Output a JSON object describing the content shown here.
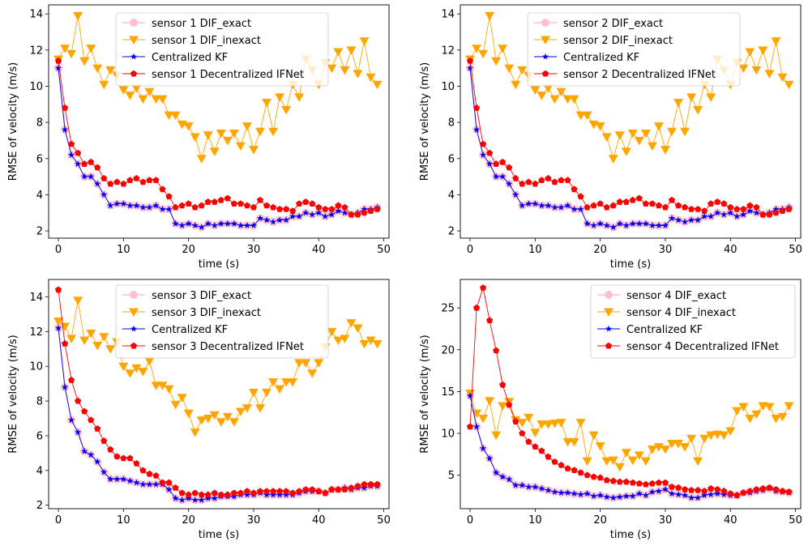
{
  "colors": {
    "exact": "#ffc0cb",
    "inexact": "#ffa500",
    "kf": "#0000ff",
    "ifnet": "#ff0000"
  },
  "chart_data": [
    {
      "type": "line",
      "title": "",
      "xlabel": "time (s)",
      "ylabel": "RMSE of velocity (m/s)",
      "xlim": [
        -1.5,
        50.8
      ],
      "ylim": [
        1.6,
        14.5
      ],
      "xticks": [
        0,
        10,
        20,
        30,
        40,
        50
      ],
      "yticks": [
        2,
        4,
        6,
        8,
        10,
        12,
        14
      ],
      "legend_position": "top-center",
      "series": [
        {
          "key": "exact",
          "name": "sensor 1 DIF_exact",
          "marker": "circle",
          "values": [
            11.0,
            7.6,
            6.2,
            5.7,
            5.0,
            5.0,
            4.6,
            4.0,
            3.4,
            3.5,
            3.5,
            3.4,
            3.4,
            3.3,
            3.3,
            3.4,
            3.2,
            3.2,
            2.4,
            2.3,
            2.4,
            2.3,
            2.2,
            2.4,
            2.3,
            2.4,
            2.4,
            2.4,
            2.3,
            2.3,
            2.3,
            2.7,
            2.6,
            2.5,
            2.6,
            2.6,
            2.8,
            2.8,
            3.0,
            2.9,
            3.0,
            2.8,
            2.9,
            3.1,
            3.0,
            2.9,
            3.0,
            3.2,
            3.2,
            3.3
          ]
        },
        {
          "key": "inexact",
          "name": "sensor 1 DIF_inexact",
          "marker": "triangle-down",
          "values": [
            11.5,
            12.1,
            11.8,
            13.9,
            11.4,
            12.1,
            11.0,
            10.1,
            10.9,
            10.6,
            9.8,
            9.5,
            9.9,
            9.3,
            9.7,
            9.3,
            9.3,
            8.4,
            8.4,
            7.9,
            7.8,
            7.2,
            6.0,
            7.3,
            6.4,
            7.4,
            7.0,
            7.4,
            6.7,
            7.8,
            6.5,
            7.5,
            9.1,
            7.5,
            9.4,
            8.7,
            10.1,
            9.4,
            11.5,
            10.9,
            10.1,
            11.3,
            11.0,
            11.9,
            10.9,
            12.0,
            10.7,
            12.5,
            10.5,
            10.1
          ]
        },
        {
          "key": "kf",
          "name": "Centralized KF",
          "marker": "star",
          "values": [
            11.0,
            7.6,
            6.2,
            5.7,
            5.0,
            5.0,
            4.6,
            4.0,
            3.4,
            3.5,
            3.5,
            3.4,
            3.4,
            3.3,
            3.3,
            3.4,
            3.2,
            3.2,
            2.4,
            2.3,
            2.4,
            2.3,
            2.2,
            2.4,
            2.3,
            2.4,
            2.4,
            2.4,
            2.3,
            2.3,
            2.3,
            2.7,
            2.6,
            2.5,
            2.6,
            2.6,
            2.8,
            2.8,
            3.0,
            2.9,
            3.0,
            2.8,
            2.9,
            3.1,
            3.0,
            2.9,
            3.0,
            3.2,
            3.2,
            3.3
          ]
        },
        {
          "key": "ifnet",
          "name": "sensor 1 Decentralized IFNet",
          "marker": "pentagon",
          "values": [
            11.4,
            8.8,
            6.8,
            6.3,
            5.7,
            5.8,
            5.5,
            4.9,
            4.6,
            4.7,
            4.6,
            4.8,
            4.9,
            4.7,
            4.8,
            4.8,
            4.3,
            3.9,
            3.3,
            3.4,
            3.5,
            3.3,
            3.4,
            3.6,
            3.6,
            3.7,
            3.8,
            3.5,
            3.5,
            3.4,
            3.3,
            3.7,
            3.4,
            3.3,
            3.2,
            3.2,
            3.1,
            3.5,
            3.6,
            3.5,
            3.3,
            3.2,
            3.2,
            3.4,
            3.3,
            2.9,
            2.9,
            3.0,
            3.1,
            3.2
          ]
        }
      ]
    },
    {
      "type": "line",
      "title": "",
      "xlabel": "time (s)",
      "ylabel": "RMSE of velocity (m/s)",
      "xlim": [
        -1.5,
        50.8
      ],
      "ylim": [
        1.6,
        14.5
      ],
      "xticks": [
        0,
        10,
        20,
        30,
        40,
        50
      ],
      "yticks": [
        2,
        4,
        6,
        8,
        10,
        12,
        14
      ],
      "legend_position": "top-center",
      "series": [
        {
          "key": "exact",
          "name": "sensor 2 DIF_exact",
          "marker": "circle",
          "values": [
            11.0,
            7.6,
            6.2,
            5.7,
            5.0,
            5.0,
            4.6,
            4.0,
            3.4,
            3.5,
            3.5,
            3.4,
            3.4,
            3.3,
            3.3,
            3.4,
            3.2,
            3.2,
            2.4,
            2.3,
            2.4,
            2.3,
            2.2,
            2.4,
            2.3,
            2.4,
            2.4,
            2.4,
            2.3,
            2.3,
            2.3,
            2.7,
            2.6,
            2.5,
            2.6,
            2.6,
            2.8,
            2.8,
            3.0,
            2.9,
            3.0,
            2.8,
            2.9,
            3.1,
            3.0,
            2.9,
            3.0,
            3.2,
            3.2,
            3.3
          ]
        },
        {
          "key": "inexact",
          "name": "sensor 2 DIF_inexact",
          "marker": "triangle-down",
          "values": [
            11.5,
            12.1,
            11.8,
            13.9,
            11.4,
            12.1,
            11.0,
            10.1,
            10.9,
            10.6,
            9.8,
            9.5,
            9.9,
            9.3,
            9.7,
            9.3,
            9.3,
            8.4,
            8.4,
            7.9,
            7.8,
            7.2,
            6.0,
            7.3,
            6.4,
            7.4,
            7.0,
            7.4,
            6.7,
            7.8,
            6.5,
            7.5,
            9.1,
            7.5,
            9.4,
            8.7,
            10.1,
            9.4,
            11.5,
            10.9,
            10.1,
            11.3,
            11.0,
            11.9,
            10.9,
            12.0,
            10.7,
            12.5,
            10.5,
            10.1
          ]
        },
        {
          "key": "kf",
          "name": "Centralized KF",
          "marker": "star",
          "values": [
            11.0,
            7.6,
            6.2,
            5.7,
            5.0,
            5.0,
            4.6,
            4.0,
            3.4,
            3.5,
            3.5,
            3.4,
            3.4,
            3.3,
            3.3,
            3.4,
            3.2,
            3.2,
            2.4,
            2.3,
            2.4,
            2.3,
            2.2,
            2.4,
            2.3,
            2.4,
            2.4,
            2.4,
            2.3,
            2.3,
            2.3,
            2.7,
            2.6,
            2.5,
            2.6,
            2.6,
            2.8,
            2.8,
            3.0,
            2.9,
            3.0,
            2.8,
            2.9,
            3.1,
            3.0,
            2.9,
            3.0,
            3.2,
            3.2,
            3.3
          ]
        },
        {
          "key": "ifnet",
          "name": "sensor 2 Decentralized IFNet",
          "marker": "pentagon",
          "values": [
            11.4,
            8.8,
            6.8,
            6.3,
            5.7,
            5.8,
            5.5,
            4.9,
            4.6,
            4.7,
            4.6,
            4.8,
            4.9,
            4.7,
            4.8,
            4.8,
            4.3,
            3.9,
            3.3,
            3.4,
            3.5,
            3.3,
            3.4,
            3.6,
            3.6,
            3.7,
            3.8,
            3.5,
            3.5,
            3.4,
            3.3,
            3.7,
            3.4,
            3.3,
            3.2,
            3.2,
            3.1,
            3.5,
            3.6,
            3.5,
            3.3,
            3.2,
            3.2,
            3.4,
            3.3,
            2.9,
            2.9,
            3.0,
            3.1,
            3.2
          ]
        }
      ]
    },
    {
      "type": "line",
      "title": "",
      "xlabel": "time (s)",
      "ylabel": "RMSE of velocity (m/s)",
      "xlim": [
        -1.5,
        50.8
      ],
      "ylim": [
        1.8,
        15.0
      ],
      "xticks": [
        0,
        10,
        20,
        30,
        40,
        50
      ],
      "yticks": [
        2,
        4,
        6,
        8,
        10,
        12,
        14
      ],
      "legend_position": "top-center",
      "series": [
        {
          "key": "exact",
          "name": "sensor 3 DIF_exact",
          "marker": "circle",
          "values": [
            12.2,
            8.8,
            6.9,
            6.2,
            5.1,
            4.9,
            4.5,
            3.9,
            3.5,
            3.5,
            3.5,
            3.4,
            3.3,
            3.2,
            3.2,
            3.2,
            3.2,
            2.9,
            2.4,
            2.3,
            2.4,
            2.3,
            2.3,
            2.4,
            2.4,
            2.5,
            2.5,
            2.5,
            2.6,
            2.6,
            2.6,
            2.7,
            2.6,
            2.6,
            2.6,
            2.6,
            2.6,
            2.7,
            2.8,
            2.8,
            2.8,
            2.7,
            2.9,
            2.9,
            3.0,
            2.9,
            3.0,
            3.0,
            3.1,
            3.1
          ]
        },
        {
          "key": "inexact",
          "name": "sensor 3 DIF_inexact",
          "marker": "triangle-down",
          "values": [
            12.6,
            12.3,
            11.6,
            13.8,
            11.5,
            11.9,
            11.2,
            11.7,
            11.0,
            11.4,
            10.0,
            9.6,
            9.9,
            9.7,
            10.3,
            8.9,
            8.9,
            8.7,
            7.8,
            8.2,
            7.3,
            6.2,
            6.9,
            7.0,
            7.2,
            6.8,
            7.1,
            6.8,
            7.4,
            7.6,
            8.5,
            7.6,
            8.5,
            9.1,
            8.7,
            9.1,
            9.1,
            10.2,
            10.2,
            9.6,
            10.2,
            11.1,
            12.0,
            11.5,
            11.6,
            12.5,
            12.2,
            11.3,
            11.5,
            11.3
          ]
        },
        {
          "key": "kf",
          "name": "Centralized KF",
          "marker": "star",
          "values": [
            12.2,
            8.8,
            6.9,
            6.2,
            5.1,
            4.9,
            4.5,
            3.9,
            3.5,
            3.5,
            3.5,
            3.4,
            3.3,
            3.2,
            3.2,
            3.2,
            3.2,
            2.9,
            2.4,
            2.3,
            2.4,
            2.3,
            2.3,
            2.4,
            2.4,
            2.5,
            2.5,
            2.5,
            2.6,
            2.6,
            2.6,
            2.7,
            2.6,
            2.6,
            2.6,
            2.6,
            2.6,
            2.7,
            2.8,
            2.8,
            2.8,
            2.7,
            2.9,
            2.9,
            3.0,
            2.9,
            3.0,
            3.0,
            3.1,
            3.1
          ]
        },
        {
          "key": "ifnet",
          "name": "sensor 3 Decentralized IFNet",
          "marker": "pentagon",
          "values": [
            14.4,
            11.3,
            9.2,
            8.0,
            7.4,
            6.9,
            6.4,
            5.7,
            5.2,
            4.8,
            4.7,
            4.7,
            4.4,
            4.0,
            3.8,
            3.7,
            3.3,
            3.3,
            3.0,
            2.7,
            2.6,
            2.7,
            2.6,
            2.6,
            2.7,
            2.6,
            2.6,
            2.7,
            2.7,
            2.8,
            2.7,
            2.8,
            2.8,
            2.8,
            2.8,
            2.8,
            2.7,
            2.8,
            2.9,
            2.9,
            2.8,
            2.7,
            2.9,
            2.9,
            2.9,
            3.0,
            3.1,
            3.2,
            3.2,
            3.2
          ]
        }
      ]
    },
    {
      "type": "line",
      "title": "",
      "xlabel": "time (s)",
      "ylabel": "RMSE of velocity (m/s)",
      "xlim": [
        -1.5,
        50.8
      ],
      "ylim": [
        1.0,
        28.4
      ],
      "xticks": [
        0,
        10,
        20,
        30,
        40,
        50
      ],
      "yticks": [
        5,
        10,
        15,
        20,
        25
      ],
      "legend_position": "top-right",
      "series": [
        {
          "key": "exact",
          "name": "sensor 4 DIF_exact",
          "marker": "circle",
          "values": [
            14.5,
            10.8,
            8.2,
            7.0,
            5.3,
            4.8,
            4.5,
            3.8,
            3.8,
            3.6,
            3.6,
            3.4,
            3.2,
            3.0,
            2.9,
            2.9,
            2.8,
            2.7,
            2.8,
            2.5,
            2.6,
            2.4,
            2.3,
            2.4,
            2.5,
            2.5,
            2.8,
            2.6,
            3.0,
            3.1,
            3.3,
            2.8,
            2.7,
            2.6,
            2.3,
            2.3,
            2.6,
            2.7,
            2.8,
            2.7,
            2.6,
            2.6,
            2.9,
            2.9,
            3.1,
            3.2,
            3.4,
            3.1,
            3.0,
            2.9
          ]
        },
        {
          "key": "inexact",
          "name": "sensor 4 DIF_inexact",
          "marker": "triangle-down",
          "values": [
            14.8,
            12.4,
            11.8,
            13.9,
            9.8,
            13.3,
            13.8,
            11.6,
            11.3,
            11.9,
            10.1,
            11.1,
            11.1,
            11.2,
            11.3,
            9.0,
            9.0,
            11.3,
            6.7,
            9.8,
            8.5,
            6.7,
            6.8,
            6.0,
            7.7,
            6.8,
            7.4,
            6.7,
            8.1,
            8.4,
            8.1,
            8.8,
            8.8,
            8.4,
            9.4,
            6.7,
            9.4,
            9.8,
            9.9,
            9.8,
            10.3,
            12.7,
            13.2,
            11.8,
            12.3,
            13.3,
            13.2,
            11.8,
            12.0,
            13.3
          ]
        },
        {
          "key": "kf",
          "name": "Centralized KF",
          "marker": "star",
          "values": [
            14.5,
            10.8,
            8.2,
            7.0,
            5.3,
            4.8,
            4.5,
            3.8,
            3.8,
            3.6,
            3.6,
            3.4,
            3.2,
            3.0,
            2.9,
            2.9,
            2.8,
            2.7,
            2.8,
            2.5,
            2.6,
            2.4,
            2.3,
            2.4,
            2.5,
            2.5,
            2.8,
            2.6,
            3.0,
            3.1,
            3.3,
            2.8,
            2.7,
            2.6,
            2.3,
            2.3,
            2.6,
            2.7,
            2.8,
            2.7,
            2.6,
            2.6,
            2.9,
            2.9,
            3.1,
            3.2,
            3.4,
            3.1,
            3.0,
            2.9
          ]
        },
        {
          "key": "ifnet",
          "name": "sensor 4 Decentralized IFNet",
          "marker": "pentagon",
          "values": [
            10.8,
            25.0,
            27.4,
            23.5,
            19.9,
            15.8,
            13.4,
            11.4,
            10.0,
            9.0,
            8.4,
            7.9,
            7.2,
            6.6,
            6.2,
            5.8,
            5.6,
            5.3,
            5.0,
            4.8,
            4.7,
            4.4,
            4.3,
            4.2,
            4.2,
            4.1,
            4.0,
            3.9,
            4.0,
            4.1,
            4.1,
            3.6,
            3.5,
            3.3,
            3.2,
            3.2,
            3.1,
            3.4,
            3.3,
            3.1,
            2.8,
            2.6,
            2.9,
            3.1,
            3.3,
            3.4,
            3.5,
            3.3,
            3.1,
            3.0
          ]
        }
      ]
    }
  ]
}
